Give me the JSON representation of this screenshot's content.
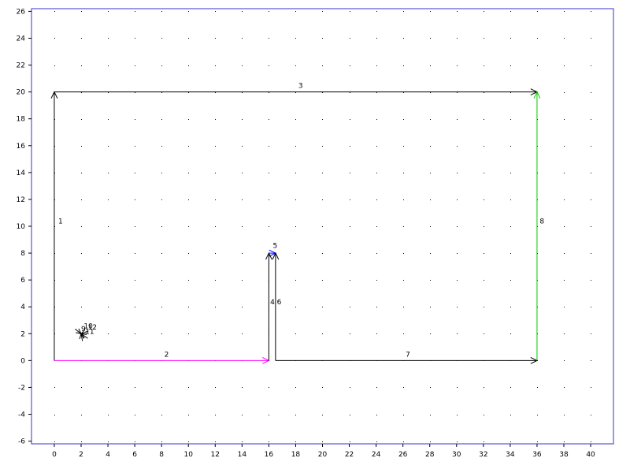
{
  "chart_data": {
    "type": "diagram",
    "xlim": [
      -1.7,
      41.7
    ],
    "ylim": [
      -6.2,
      26.2
    ],
    "x_ticks": [
      0,
      2,
      4,
      6,
      8,
      10,
      12,
      14,
      16,
      18,
      20,
      22,
      24,
      26,
      28,
      30,
      32,
      34,
      36,
      38,
      40
    ],
    "y_ticks": [
      -6,
      -4,
      -2,
      0,
      2,
      4,
      6,
      8,
      10,
      12,
      14,
      16,
      18,
      20,
      22,
      24,
      26
    ],
    "grid": "dotted",
    "frame_color": "#3333cc",
    "edges": [
      {
        "label": "1",
        "from": [
          0,
          0
        ],
        "to": [
          0,
          20
        ],
        "color": "#000000",
        "label_at": [
          0.3,
          10.2
        ]
      },
      {
        "label": "2",
        "from": [
          0,
          0
        ],
        "to": [
          16,
          0
        ],
        "color": "#ff00ff",
        "label_at": [
          8.2,
          0.3
        ]
      },
      {
        "label": "3",
        "from": [
          0,
          20
        ],
        "to": [
          36,
          20
        ],
        "color": "#000000",
        "label_at": [
          18.2,
          20.3
        ]
      },
      {
        "label": "4",
        "from": [
          16,
          0
        ],
        "to": [
          16,
          8
        ],
        "color": "#000000",
        "label_at": [
          16.1,
          4.2
        ]
      },
      {
        "label": "5",
        "from": [
          16,
          8
        ],
        "to": [
          16.5,
          8
        ],
        "color": "#0000ff",
        "label_at": [
          16.3,
          8.4
        ]
      },
      {
        "label": "6",
        "from": [
          16.5,
          0
        ],
        "to": [
          16.5,
          8
        ],
        "color": "#000000",
        "label_at": [
          16.6,
          4.2
        ]
      },
      {
        "label": "7",
        "from": [
          16.5,
          0
        ],
        "to": [
          36,
          0
        ],
        "color": "#000000",
        "label_at": [
          26.2,
          0.3
        ]
      },
      {
        "label": "8",
        "from": [
          36,
          0
        ],
        "to": [
          36,
          20
        ],
        "color": "#00cc00",
        "label_at": [
          36.2,
          10.2
        ]
      }
    ],
    "cluster_labels": [
      {
        "text": "9",
        "at": [
          2.0,
          2.2
        ]
      },
      {
        "text": "10",
        "at": [
          2.2,
          2.4
        ]
      },
      {
        "text": "11",
        "at": [
          2.3,
          2.0
        ]
      },
      {
        "text": "12",
        "at": [
          2.5,
          2.3
        ]
      }
    ],
    "cluster_center": [
      2,
      2
    ]
  }
}
